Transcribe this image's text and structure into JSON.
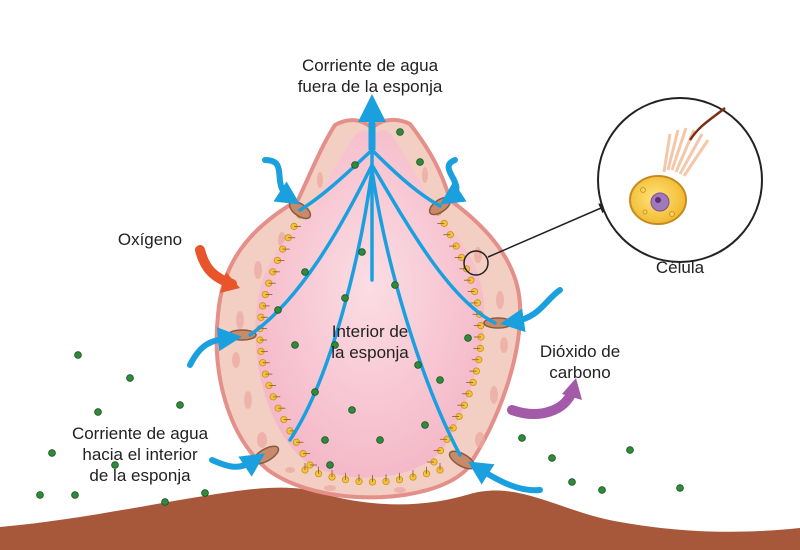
{
  "labels": {
    "water_out": [
      "Corriente de agua",
      "fuera de la esponja"
    ],
    "oxygen": "Oxígeno",
    "cell": "Célula",
    "interior": [
      "Interior de",
      "la esponja"
    ],
    "co2": [
      "Dióxido de",
      "carbono"
    ],
    "water_in": [
      "Corriente de agua",
      "hacia el interior",
      "de la esponja"
    ]
  },
  "colors": {
    "water_flow": "#1aa0df",
    "sponge_wall": "#f3cfc3",
    "sponge_interior": "#f8c6d2",
    "collar_cells": "#f5c23c",
    "oxygen_arrow": "#e8552a",
    "co2_arrow": "#a35aa8",
    "ground": "#a8583a",
    "oxygen_dots": "#2e8b3a"
  }
}
